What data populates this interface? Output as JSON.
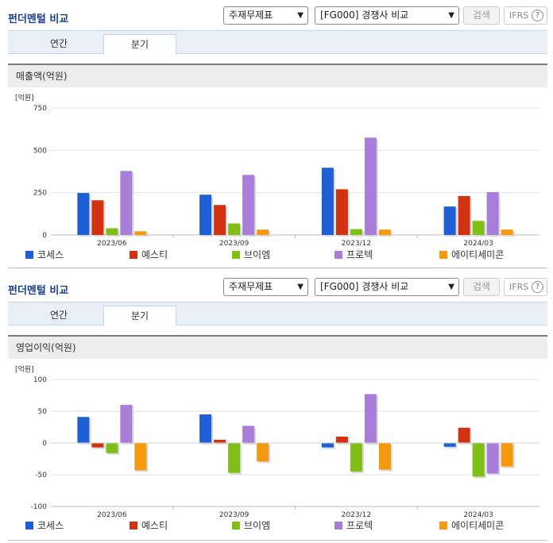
{
  "panels": [
    {
      "title": "펀더멘털 비교",
      "select1": "주재무제표",
      "select2": "[FG000] 경쟁사 비교",
      "search_label": "검색",
      "ifrs_label": "IFRS",
      "tab_annual": "연간",
      "tab_quarter": "분기",
      "subtitle": "매출액(억원)"
    },
    {
      "title": "펀더멘털 비교",
      "select1": "주재무제표",
      "select2": "[FG000] 경쟁사 비교",
      "search_label": "검색",
      "ifrs_label": "IFRS",
      "tab_annual": "연간",
      "tab_quarter": "분기",
      "subtitle": "영업이익(억원)"
    }
  ],
  "colors": {
    "코세스": "#1f5fd6",
    "예스티": "#d13212",
    "브이엠": "#7fbf17",
    "프로텍": "#a97ed8",
    "에이티세미콘": "#f59a0e"
  },
  "chart_data": [
    {
      "type": "bar",
      "unit": "[억원]",
      "categories": [
        "2023/06",
        "2023/09",
        "2023/12",
        "2024/03"
      ],
      "ylim": [
        0,
        750
      ],
      "yticks": [
        0,
        250,
        500,
        750
      ],
      "grid": true,
      "legend_position": "bottom",
      "series": [
        {
          "name": "코세스",
          "values": [
            248,
            238,
            397,
            168
          ]
        },
        {
          "name": "예스티",
          "values": [
            205,
            177,
            270,
            230
          ]
        },
        {
          "name": "브이엠",
          "values": [
            40,
            68,
            35,
            83
          ]
        },
        {
          "name": "프로텍",
          "values": [
            378,
            355,
            575,
            253
          ]
        },
        {
          "name": "에이티세미콘",
          "values": [
            22,
            32,
            32,
            32
          ]
        }
      ]
    },
    {
      "type": "bar",
      "unit": "[억원]",
      "categories": [
        "2023/06",
        "2023/09",
        "2023/12",
        "2024/03"
      ],
      "ylim": [
        -100,
        100
      ],
      "yticks": [
        -100,
        -50,
        0,
        50,
        100
      ],
      "grid": true,
      "legend_position": "bottom",
      "series": [
        {
          "name": "코세스",
          "values": [
            41,
            45,
            -7,
            -6
          ]
        },
        {
          "name": "예스티",
          "values": [
            -7,
            5,
            10,
            24
          ]
        },
        {
          "name": "브이엠",
          "values": [
            -16,
            -47,
            -45,
            -53
          ]
        },
        {
          "name": "프로텍",
          "values": [
            60,
            27,
            77,
            -48
          ]
        },
        {
          "name": "에이티세미콘",
          "values": [
            -43,
            -29,
            -42,
            -37
          ]
        }
      ]
    }
  ]
}
